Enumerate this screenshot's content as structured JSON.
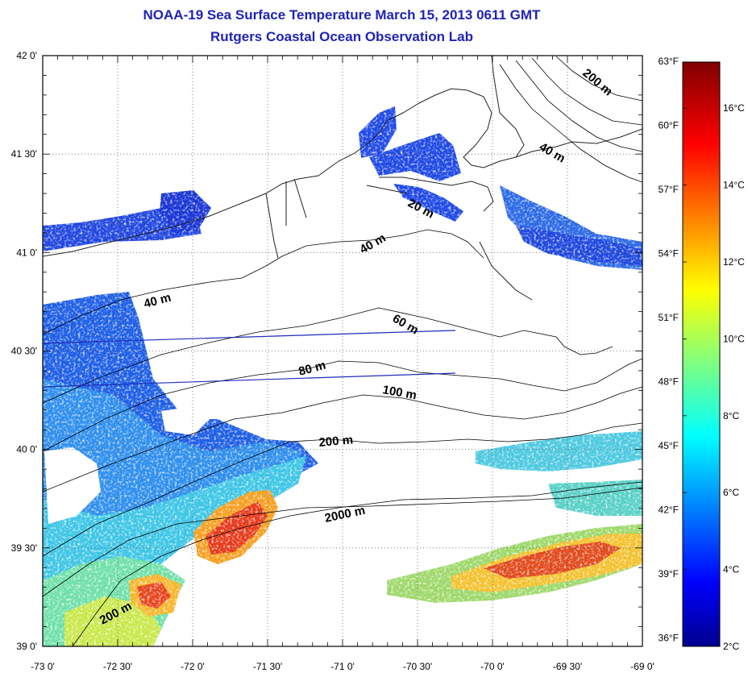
{
  "title": {
    "line1": "NOAA-19 Sea Surface Temperature March 15, 2013 0611 GMT",
    "line2": "Rutgers Coastal Ocean Observation Lab"
  },
  "map": {
    "lon_range": [
      -73.0,
      -69.0
    ],
    "lat_range": [
      39.0,
      42.0
    ],
    "grid": "dotted",
    "x_ticks": [
      "-73 0'",
      "-72 30'",
      "-72 0'",
      "-71 30'",
      "-71 0'",
      "-70 30'",
      "-70 0'",
      "-69 30'",
      "-69 0'"
    ],
    "y_ticks": [
      "39 0'",
      "39 30'",
      "40 0'",
      "40 30'",
      "41 0'",
      "41 30'",
      "42 0'"
    ],
    "isobath_labels": [
      "200 m",
      "40 m",
      "20 m",
      "40 m",
      "40 m",
      "60 m",
      "80 m",
      "100 m",
      "200 m",
      "2000 m",
      "200 m"
    ]
  },
  "colorbar": {
    "fahrenheit_ticks": [
      "63°F",
      "60°F",
      "57°F",
      "54°F",
      "51°F",
      "48°F",
      "45°F",
      "42°F",
      "39°F",
      "36°F"
    ],
    "celsius_ticks": [
      "16°C",
      "14°C",
      "12°C",
      "10°C",
      "8°C",
      "6°C",
      "4°C",
      "2°C"
    ],
    "range_celsius": [
      2,
      17.2
    ],
    "colormap": "jet"
  }
}
